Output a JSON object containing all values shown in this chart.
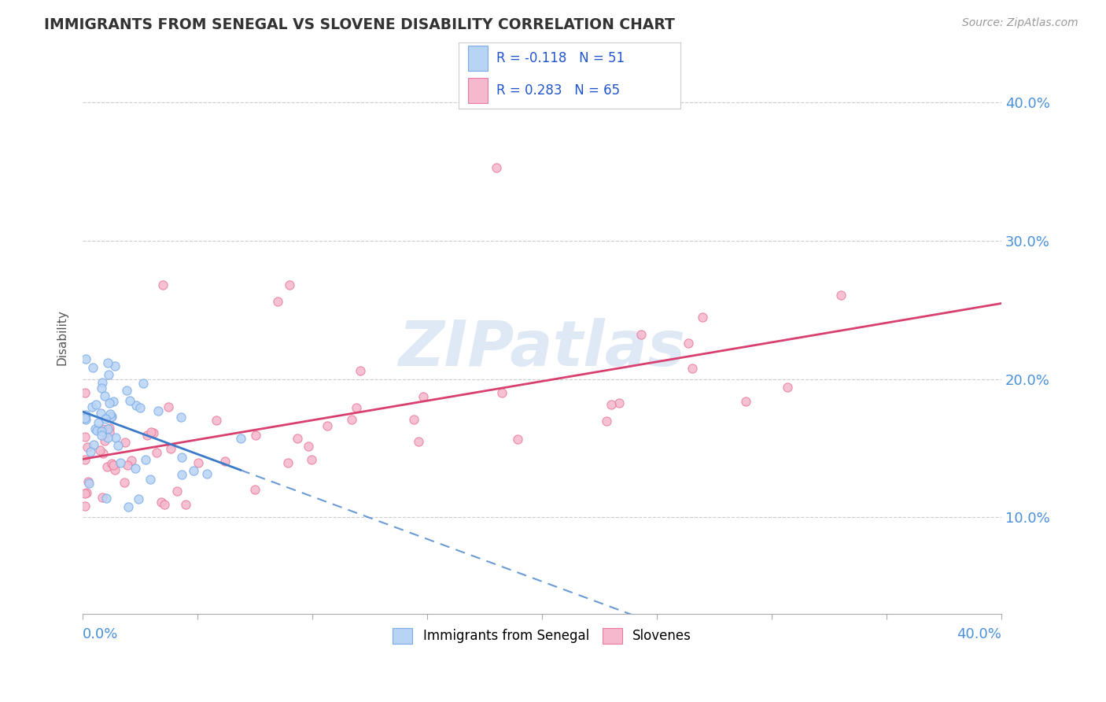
{
  "title": "IMMIGRANTS FROM SENEGAL VS SLOVENE DISABILITY CORRELATION CHART",
  "source": "Source: ZipAtlas.com",
  "ylabel": "Disability",
  "y_ticks": [
    0.1,
    0.2,
    0.3,
    0.4
  ],
  "y_tick_labels": [
    "10.0%",
    "20.0%",
    "30.0%",
    "40.0%"
  ],
  "x_range": [
    0.0,
    0.4
  ],
  "y_range": [
    0.03,
    0.43
  ],
  "series1_name": "Immigrants from Senegal",
  "series1_fill": "#b8d4f5",
  "series1_edge": "#7aaae8",
  "series1_R": -0.118,
  "series1_N": 51,
  "series1_line_color": "#3a7ac8",
  "series2_name": "Slovenes",
  "series2_fill": "#f5b8cc",
  "series2_edge": "#e87a9a",
  "series2_R": 0.283,
  "series2_N": 65,
  "series2_line_color": "#d84070",
  "watermark": "ZIPatlas",
  "background_color": "#ffffff",
  "title_color": "#333333",
  "legend_R_color": "#2255cc",
  "grid_color": "#cccccc",
  "axis_color": "#4a90d9",
  "marker_size": 65
}
